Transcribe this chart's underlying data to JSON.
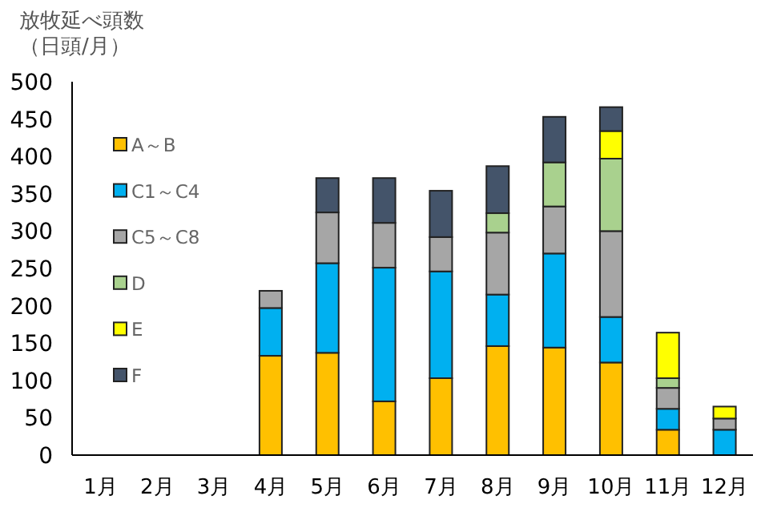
{
  "chart_data": {
    "type": "bar",
    "stacked": true,
    "ylabel": "放牧延べ頭数（日頭/月）",
    "categories": [
      "1月",
      "2月",
      "3月",
      "4月",
      "5月",
      "6月",
      "7月",
      "8月",
      "9月",
      "10月",
      "11月",
      "12月"
    ],
    "series": [
      {
        "name": "A～B",
        "color": "#ffc000",
        "values": [
          0,
          0,
          0,
          133,
          137,
          72,
          103,
          146,
          144,
          124,
          34,
          0
        ]
      },
      {
        "name": "C1～C4",
        "color": "#00b0f0",
        "values": [
          0,
          0,
          0,
          64,
          120,
          179,
          143,
          69,
          126,
          61,
          28,
          34
        ]
      },
      {
        "name": "C5～C8",
        "color": "#a6a6a6",
        "values": [
          0,
          0,
          0,
          23,
          68,
          60,
          46,
          83,
          63,
          115,
          28,
          15
        ]
      },
      {
        "name": "D",
        "color": "#a9d18e",
        "values": [
          0,
          0,
          0,
          0,
          0,
          0,
          0,
          26,
          59,
          97,
          13,
          0
        ]
      },
      {
        "name": "E",
        "color": "#ffff00",
        "values": [
          0,
          0,
          0,
          0,
          0,
          0,
          0,
          0,
          0,
          37,
          61,
          16
        ]
      },
      {
        "name": "F",
        "color": "#44546a",
        "values": [
          0,
          0,
          0,
          0,
          46,
          60,
          62,
          63,
          61,
          32,
          0,
          0
        ]
      }
    ],
    "ylim": [
      0,
      500
    ],
    "yticks": [
      0,
      50,
      100,
      150,
      200,
      250,
      300,
      350,
      400,
      450,
      500
    ],
    "grid": false,
    "legend": "top left"
  }
}
